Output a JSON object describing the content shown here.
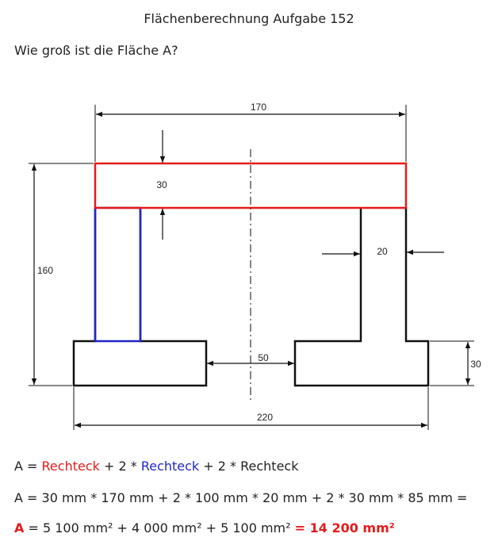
{
  "title": "Flächenberechnung Aufgabe 152",
  "question": "Wie groß ist die Fläche A?",
  "dimensions": {
    "top_width": "170",
    "top_height": "30",
    "total_height": "160",
    "web_width": "20",
    "gap": "50",
    "foot_height": "30",
    "bottom_width": "220"
  },
  "colors": {
    "red": "#e41b1b",
    "blue": "#1f27c8",
    "line": "#111111"
  },
  "formula": {
    "line1": {
      "a": "A = ",
      "r1": "Rechteck",
      "plus1": " + 2 * ",
      "r2": "Rechteck",
      "plus2": " + 2 * Rechteck"
    },
    "line2": "A = 30 mm * 170 mm + 2 * 100 mm * 20 mm + 2 * 30 mm * 85 mm =",
    "line3": {
      "a": "A",
      "eq": " = 5 100 mm² + 4 000 mm² + 5 100 mm² ",
      "result": "= 14 200 mm²"
    }
  }
}
